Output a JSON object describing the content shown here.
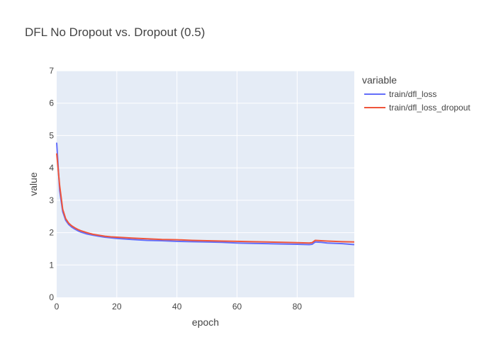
{
  "chart_data": {
    "type": "line",
    "title": "DFL No Dropout vs. Dropout (0.5)",
    "xlabel": "epoch",
    "ylabel": "value",
    "xlim": [
      0,
      99
    ],
    "ylim": [
      0,
      7
    ],
    "x_ticks": [
      0,
      20,
      40,
      60,
      80
    ],
    "y_ticks": [
      0,
      1,
      2,
      3,
      4,
      5,
      6,
      7
    ],
    "grid": true,
    "legend_title": "variable",
    "legend_position": "top-right-outside",
    "series": [
      {
        "name": "train/dfl_loss",
        "color": "#636efa",
        "x": [
          0,
          1,
          2,
          3,
          4,
          5,
          6,
          7,
          8,
          9,
          10,
          12,
          14,
          16,
          18,
          20,
          25,
          30,
          35,
          40,
          45,
          50,
          55,
          60,
          65,
          70,
          75,
          80,
          84,
          85,
          86,
          88,
          90,
          95,
          99
        ],
        "y": [
          4.78,
          3.3,
          2.65,
          2.38,
          2.25,
          2.17,
          2.11,
          2.06,
          2.02,
          1.99,
          1.96,
          1.92,
          1.89,
          1.86,
          1.84,
          1.82,
          1.79,
          1.76,
          1.75,
          1.73,
          1.72,
          1.71,
          1.7,
          1.68,
          1.67,
          1.66,
          1.65,
          1.64,
          1.63,
          1.64,
          1.71,
          1.7,
          1.68,
          1.66,
          1.63
        ]
      },
      {
        "name": "train/dfl_loss_dropout",
        "color": "#ef553b",
        "x": [
          0,
          1,
          2,
          3,
          4,
          5,
          6,
          7,
          8,
          9,
          10,
          12,
          14,
          16,
          18,
          20,
          25,
          30,
          35,
          40,
          45,
          50,
          55,
          60,
          65,
          70,
          75,
          80,
          84,
          85,
          86,
          88,
          90,
          95,
          99
        ],
        "y": [
          4.45,
          3.45,
          2.72,
          2.43,
          2.29,
          2.21,
          2.15,
          2.1,
          2.06,
          2.03,
          2.0,
          1.95,
          1.92,
          1.89,
          1.87,
          1.86,
          1.83,
          1.81,
          1.79,
          1.78,
          1.76,
          1.75,
          1.74,
          1.73,
          1.72,
          1.71,
          1.7,
          1.69,
          1.68,
          1.69,
          1.76,
          1.75,
          1.74,
          1.72,
          1.71
        ]
      }
    ]
  }
}
